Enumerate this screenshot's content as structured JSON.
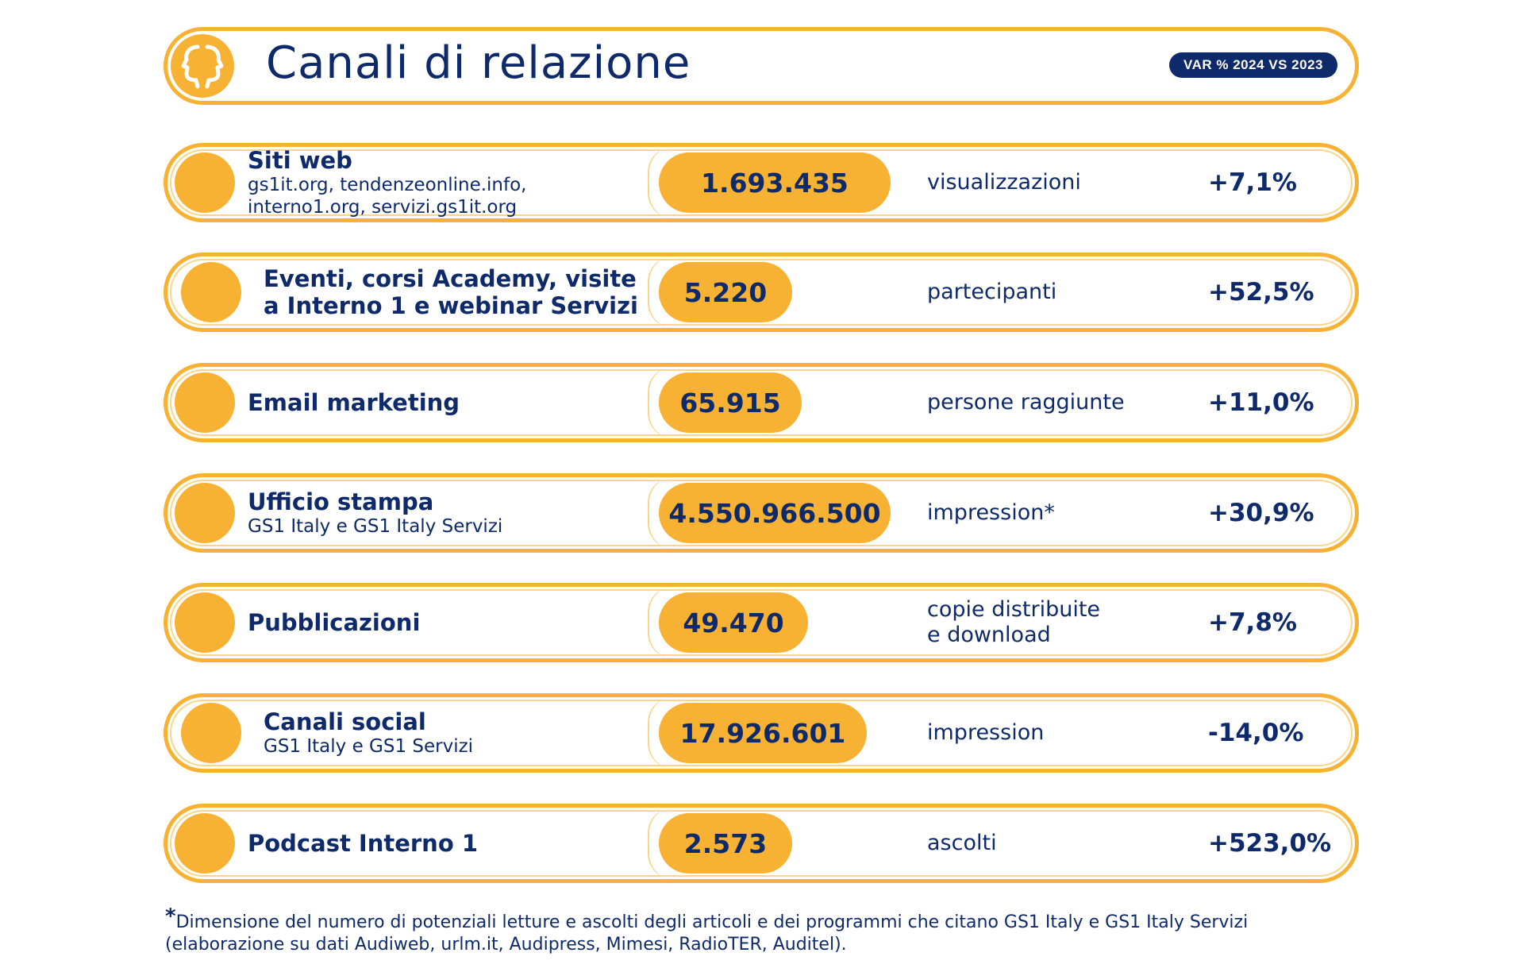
{
  "header": {
    "title": "Canali di relazione",
    "badge": "VAR % 2024 VS 2023",
    "logo_icon": "two-faces-icon"
  },
  "colors": {
    "accent": "#f7b233",
    "text": "#0e2a6b"
  },
  "rows": [
    {
      "name": "Siti web",
      "sub": [
        "gs1it.org, tendenzeonline.info,",
        "interno1.org, servizi.gs1it.org"
      ],
      "value": "1.693.435",
      "metric": [
        "visualizzazioni"
      ],
      "var": "+7,1%"
    },
    {
      "name": "Eventi, corsi Academy, visite",
      "name2": "a Interno 1 e webinar Servizi",
      "sub": [],
      "value": "5.220",
      "metric": [
        "partecipanti"
      ],
      "var": "+52,5%"
    },
    {
      "name": "Email marketing",
      "sub": [],
      "value": "65.915",
      "metric": [
        "persone raggiunte"
      ],
      "var": "+11,0%"
    },
    {
      "name": "Ufficio stampa",
      "sub": [
        "GS1 Italy e GS1 Italy Servizi"
      ],
      "value": "4.550.966.500",
      "metric": [
        "impression*"
      ],
      "var": "+30,9%"
    },
    {
      "name": "Pubblicazioni",
      "sub": [],
      "value": "49.470",
      "metric": [
        "copie distribuite",
        "e download"
      ],
      "var": "+7,8%"
    },
    {
      "name": "Canali social",
      "sub": [
        "GS1 Italy e GS1 Servizi"
      ],
      "value": "17.926.601",
      "metric": [
        "impression"
      ],
      "var": "-14,0%"
    },
    {
      "name": "Podcast Interno 1",
      "sub": [],
      "value": "2.573",
      "metric": [
        "ascolti"
      ],
      "var": "+523,0%"
    }
  ],
  "footnote": {
    "star": "*",
    "line1": "Dimensione del numero di potenziali letture e ascolti degli articoli e dei programmi che citano GS1 Italy e GS1 Italy Servizi",
    "line2": "(elaborazione su dati Audiweb, urlm.it, Audipress, Mimesi, RadioTER, Auditel)."
  }
}
